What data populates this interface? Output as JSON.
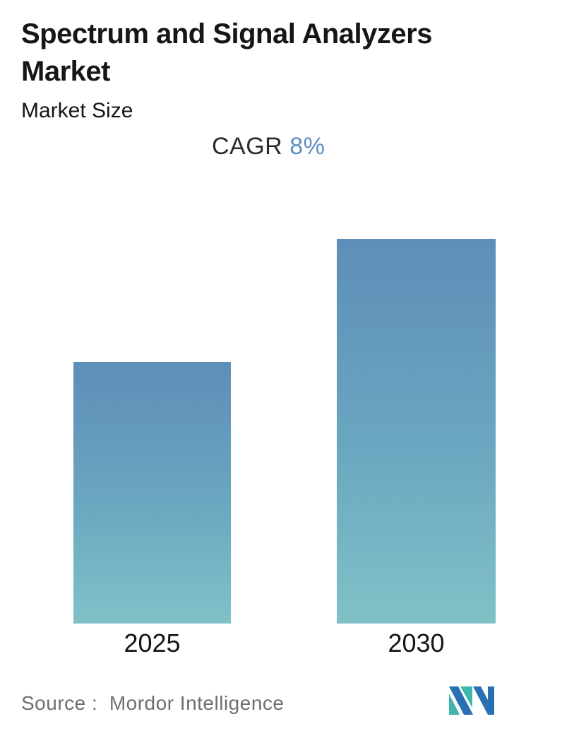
{
  "header": {
    "title": "Spectrum and Signal Analyzers\nMarket",
    "subtitle": "Market Size",
    "cagr_label": "CAGR",
    "cagr_value": "8%"
  },
  "chart_data": {
    "type": "bar",
    "title": "Spectrum and Signal Analyzers Market",
    "subtitle": "Market Size",
    "annotation": "CAGR 8%",
    "categories": [
      "2025",
      "2030"
    ],
    "values": [
      1.0,
      1.47
    ],
    "value_axis_visible": false,
    "grid": false,
    "legend_position": "none",
    "note": "No numeric axis or data labels shown; values are relative bar heights consistent with 8% CAGR from 2025 to 2030",
    "bar_gradient_top": "#5d8eb8",
    "bar_gradient_bottom": "#80c1c7"
  },
  "footer": {
    "source_label": "Source :  Mordor Intelligence",
    "logo": "mordor-intelligence-logo",
    "logo_blue": "#2970b2",
    "logo_teal": "#3fb5ae"
  },
  "colors": {
    "background": "#ffffff",
    "title_text": "#161616",
    "cagr_value_text": "#5d8fc0",
    "source_text": "#6e6e6e"
  }
}
